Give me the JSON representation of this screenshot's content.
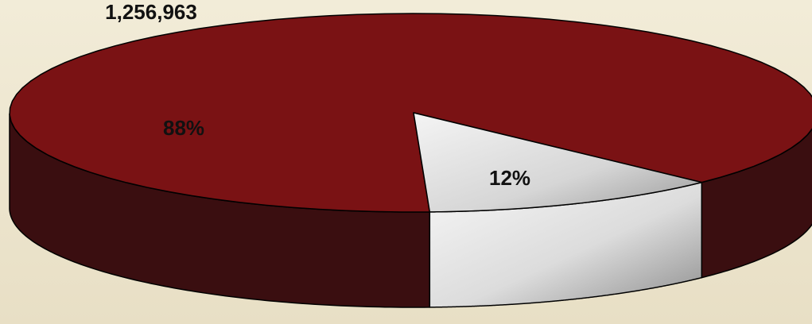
{
  "chart_data": {
    "type": "pie",
    "is_3d": true,
    "title": "1,256,963",
    "slices": [
      {
        "label": "88%",
        "value": 88,
        "color": "#7a1214",
        "side_color": "#3a0e10"
      },
      {
        "label": "12%",
        "value": 12,
        "color": "#d9d9d9",
        "side_color": "#e2e2e2"
      }
    ]
  }
}
